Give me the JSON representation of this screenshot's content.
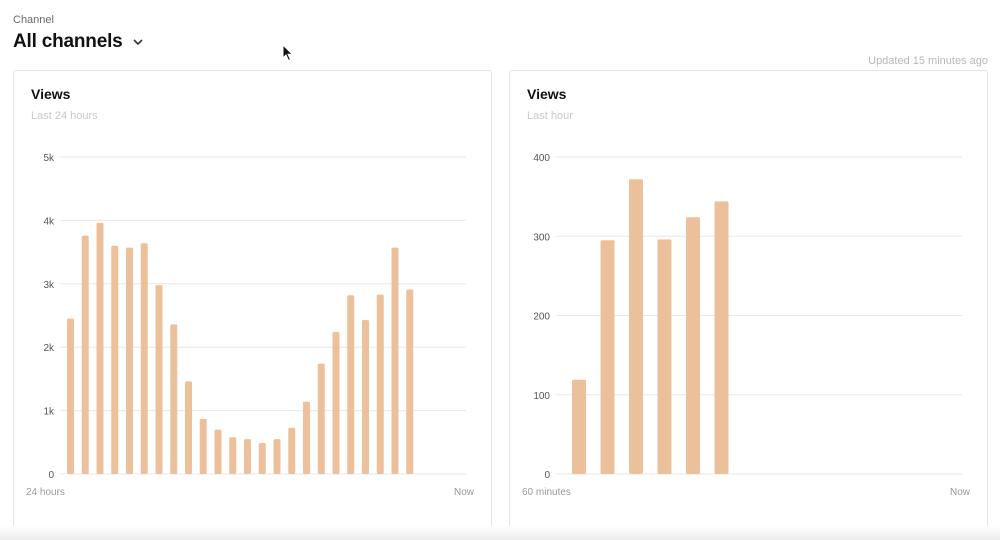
{
  "header": {
    "channel_label": "Channel",
    "channel_value": "All channels",
    "updated_text": "Updated 15 minutes ago"
  },
  "colors": {
    "bar": "#EDC09C",
    "grid": "#e8e8e8",
    "tick": "#555555",
    "axis_end_label": "#9a9a9a"
  },
  "icons": {
    "dropdown": "chevron-down-icon",
    "cursor": "mouse-cursor-icon"
  },
  "chart_data": [
    {
      "type": "bar",
      "title": "Views",
      "subtitle": "Last 24 hours",
      "xlabel_start": "24 hours",
      "xlabel_end": "Now",
      "yticks": [
        "0",
        "1k",
        "2k",
        "3k",
        "4k",
        "5k"
      ],
      "ylim": [
        0,
        5000
      ],
      "slots": 27,
      "values": [
        2450,
        3760,
        3960,
        3600,
        3570,
        3640,
        2980,
        2360,
        1460,
        870,
        700,
        580,
        550,
        490,
        550,
        730,
        1140,
        1740,
        2240,
        2820,
        2430,
        2830,
        3570,
        2910
      ],
      "grid": true
    },
    {
      "type": "bar",
      "title": "Views",
      "subtitle": "Last hour",
      "xlabel_start": "60 minutes",
      "xlabel_end": "Now",
      "yticks": [
        "0",
        "100",
        "200",
        "300",
        "400"
      ],
      "ylim": [
        0,
        400
      ],
      "slots": 13,
      "values": [
        119,
        295,
        372,
        296,
        324,
        344
      ],
      "grid": true
    }
  ]
}
